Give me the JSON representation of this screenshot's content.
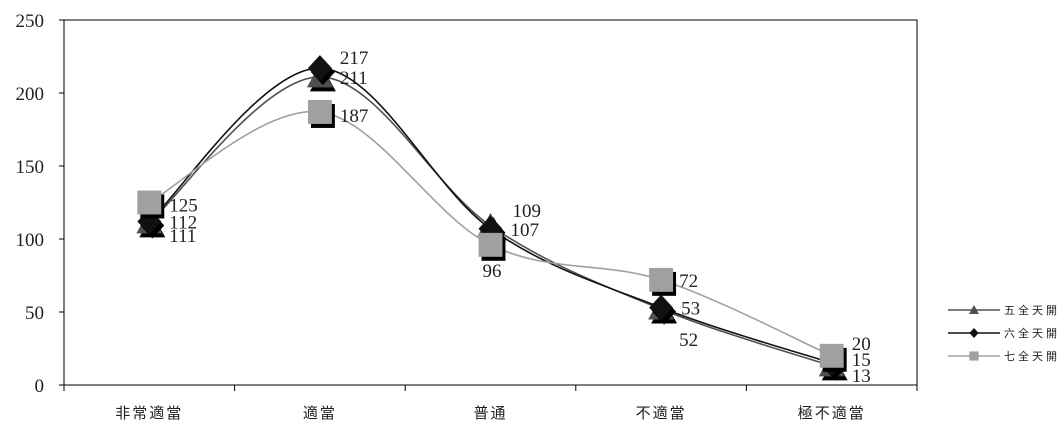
{
  "chart_data": {
    "type": "line",
    "title": "",
    "xlabel": "",
    "ylabel": "",
    "categories": [
      "非常適當",
      "適當",
      "普通",
      "不適當",
      "極不適當"
    ],
    "series": [
      {
        "name": "五全天開",
        "values": [
          111,
          211,
          109,
          52,
          13
        ],
        "color": "#505050",
        "marker": "triangle"
      },
      {
        "name": "六全天開",
        "values": [
          112,
          217,
          107,
          53,
          15
        ],
        "color": "#111111",
        "marker": "diamond"
      },
      {
        "name": "七全天開",
        "values": [
          125,
          187,
          96,
          72,
          20
        ],
        "color": "#a0a0a0",
        "marker": "square"
      }
    ],
    "yticks": [
      0,
      50,
      100,
      150,
      200,
      250
    ],
    "ylim": [
      0,
      250
    ],
    "grid": false,
    "legend": "right",
    "data_labels": true,
    "smoothed": true
  }
}
